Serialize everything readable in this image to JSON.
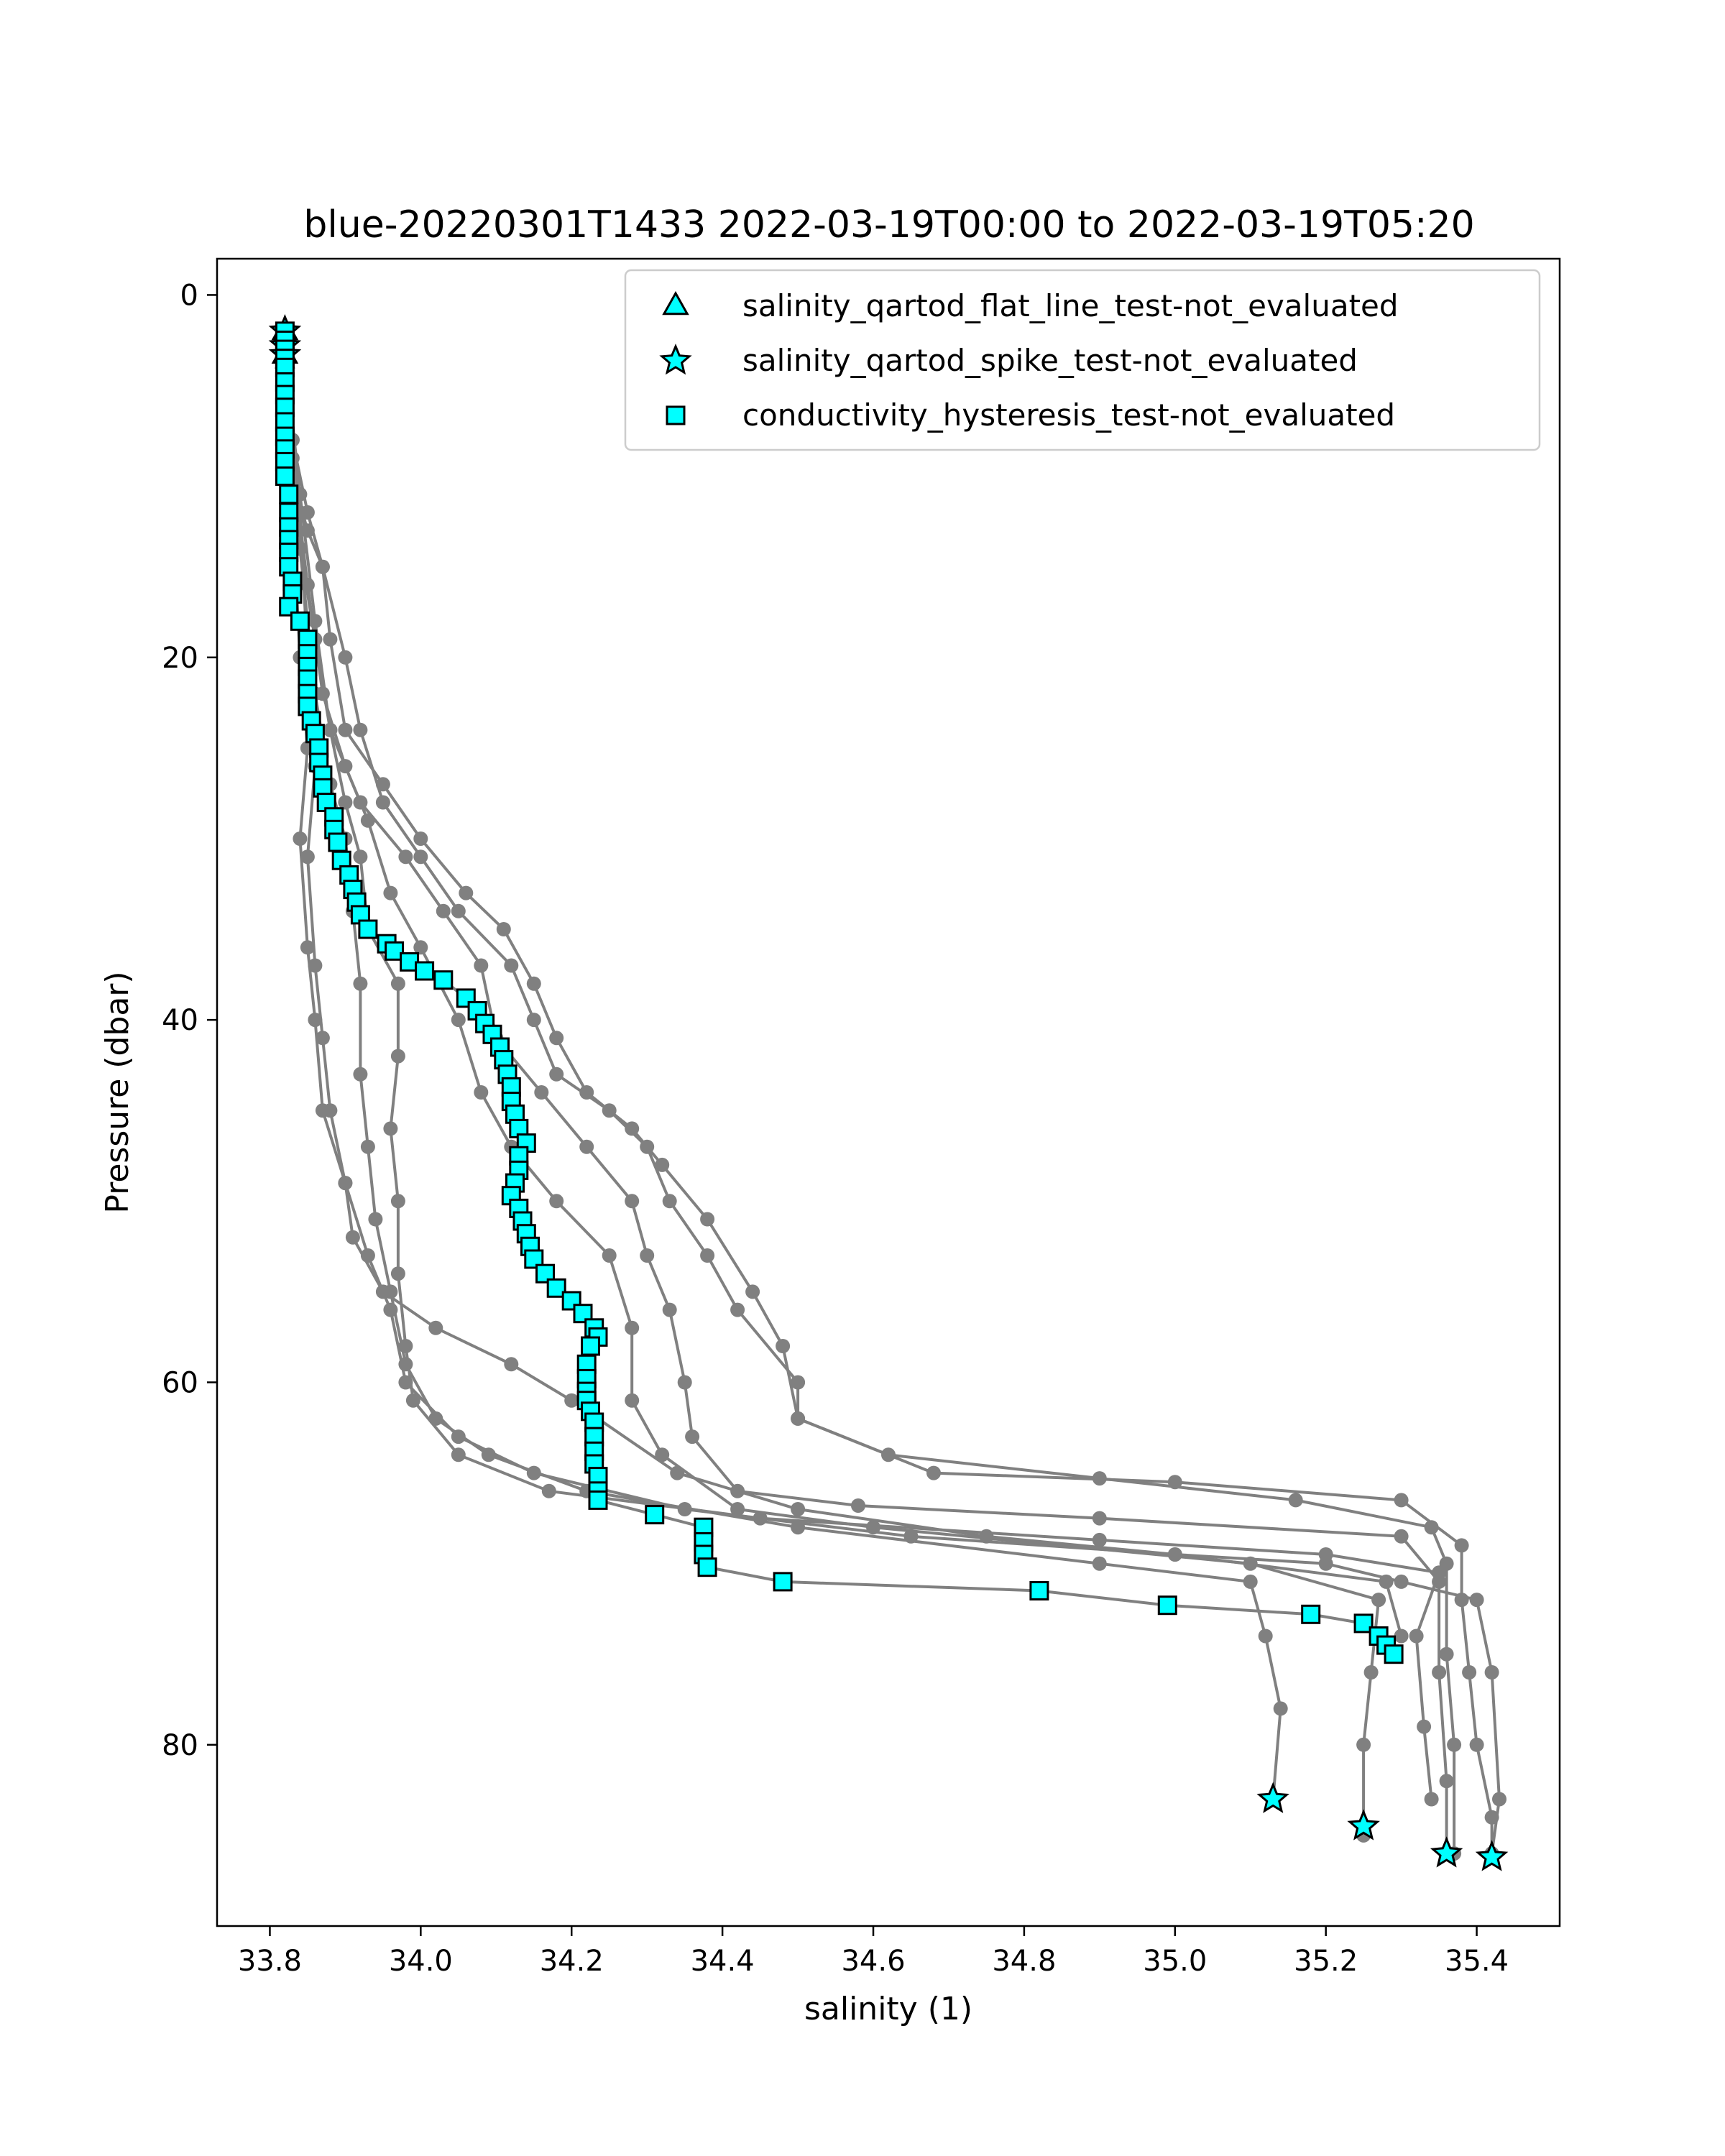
{
  "chart_data": {
    "type": "scatter",
    "title": "blue-20220301T1433 2022-03-19T00:00 to 2022-03-19T05:20",
    "xlabel": "salinity (1)",
    "ylabel": "Pressure (dbar)",
    "xlim": [
      33.73,
      35.51
    ],
    "ylim": [
      90,
      -2
    ],
    "y_inverted": true,
    "x_ticks": [
      33.8,
      34.0,
      34.2,
      34.4,
      34.6,
      34.8,
      35.0,
      35.2,
      35.4
    ],
    "x_tick_labels": [
      "33.8",
      "34.0",
      "34.2",
      "34.4",
      "34.6",
      "34.8",
      "35.0",
      "35.2",
      "35.4"
    ],
    "y_ticks": [
      0,
      20,
      40,
      60,
      80
    ],
    "y_tick_labels": [
      "0",
      "20",
      "40",
      "60",
      "80"
    ],
    "grid": false,
    "legend_position": "top-right",
    "colors": {
      "profile": "#808080",
      "marker_fill": "#00ffff",
      "marker_edge": "#000000"
    },
    "legend": [
      {
        "label": "salinity_qartod_flat_line_test-not_evaluated",
        "marker": "triangle"
      },
      {
        "label": "salinity_qartod_spike_test-not_evaluated",
        "marker": "star"
      },
      {
        "label": "conductivity_hysteresis_test-not_evaluated",
        "marker": "square"
      }
    ],
    "background_profiles": [
      [
        [
          33.82,
          2
        ],
        [
          33.82,
          6
        ],
        [
          33.83,
          10
        ],
        [
          33.85,
          13
        ],
        [
          33.87,
          15
        ],
        [
          33.9,
          20
        ],
        [
          33.92,
          24
        ],
        [
          33.95,
          28
        ],
        [
          34.0,
          31
        ],
        [
          34.05,
          34
        ],
        [
          34.12,
          37
        ],
        [
          34.15,
          40
        ],
        [
          34.18,
          43
        ],
        [
          34.25,
          45
        ],
        [
          34.3,
          47
        ],
        [
          34.33,
          50
        ],
        [
          34.38,
          53
        ],
        [
          34.42,
          56
        ],
        [
          34.5,
          60
        ],
        [
          34.5,
          62
        ],
        [
          34.68,
          65
        ],
        [
          35.0,
          65.5
        ],
        [
          35.3,
          66.5
        ],
        [
          35.38,
          69
        ],
        [
          35.38,
          72
        ],
        [
          35.39,
          76
        ],
        [
          35.4,
          80
        ],
        [
          35.42,
          84
        ],
        [
          35.42,
          86
        ]
      ],
      [
        [
          33.82,
          2
        ],
        [
          33.83,
          8
        ],
        [
          33.85,
          12
        ],
        [
          33.87,
          15
        ],
        [
          33.88,
          19
        ],
        [
          33.9,
          24
        ],
        [
          33.95,
          27
        ],
        [
          34.0,
          30
        ],
        [
          34.06,
          33
        ],
        [
          34.11,
          35
        ],
        [
          34.15,
          38
        ],
        [
          34.18,
          41
        ],
        [
          34.22,
          44
        ],
        [
          34.28,
          46
        ],
        [
          34.32,
          48
        ],
        [
          34.38,
          51
        ],
        [
          34.44,
          55
        ],
        [
          34.48,
          58
        ],
        [
          34.5,
          62
        ],
        [
          34.62,
          64
        ],
        [
          34.9,
          65.3
        ],
        [
          35.16,
          66.5
        ],
        [
          35.34,
          68
        ],
        [
          35.36,
          70
        ],
        [
          35.36,
          75
        ],
        [
          35.37,
          80
        ],
        [
          35.37,
          86
        ]
      ],
      [
        [
          33.82,
          2
        ],
        [
          33.83,
          8
        ],
        [
          33.84,
          14
        ],
        [
          33.86,
          19
        ],
        [
          33.88,
          24
        ],
        [
          33.92,
          28
        ],
        [
          33.98,
          31
        ],
        [
          34.03,
          34
        ],
        [
          34.08,
          37
        ],
        [
          34.1,
          41
        ],
        [
          34.16,
          44
        ],
        [
          34.22,
          47
        ],
        [
          34.28,
          50
        ],
        [
          34.3,
          53
        ],
        [
          34.33,
          56
        ],
        [
          34.35,
          60
        ],
        [
          34.36,
          63
        ],
        [
          34.42,
          66
        ],
        [
          34.58,
          66.8
        ],
        [
          34.9,
          67.5
        ],
        [
          35.3,
          68.5
        ],
        [
          35.35,
          71
        ],
        [
          35.35,
          76
        ],
        [
          35.36,
          82
        ],
        [
          35.36,
          86
        ]
      ],
      [
        [
          33.82,
          3
        ],
        [
          33.83,
          9
        ],
        [
          33.85,
          16
        ],
        [
          33.87,
          22
        ],
        [
          33.9,
          26
        ],
        [
          33.93,
          29
        ],
        [
          33.96,
          33
        ],
        [
          34.0,
          36
        ],
        [
          34.05,
          40
        ],
        [
          34.08,
          44
        ],
        [
          34.12,
          47
        ],
        [
          34.18,
          50
        ],
        [
          34.25,
          53
        ],
        [
          34.28,
          57
        ],
        [
          34.28,
          61
        ],
        [
          34.32,
          64
        ],
        [
          34.42,
          67
        ],
        [
          34.6,
          68
        ],
        [
          35.1,
          70
        ],
        [
          35.27,
          72
        ],
        [
          35.26,
          76
        ],
        [
          35.25,
          80
        ],
        [
          35.25,
          85
        ]
      ],
      [
        [
          33.82,
          3
        ],
        [
          33.84,
          11
        ],
        [
          33.86,
          18
        ],
        [
          33.88,
          24
        ],
        [
          33.9,
          28
        ],
        [
          33.92,
          31
        ],
        [
          33.93,
          35
        ],
        [
          33.97,
          38
        ],
        [
          33.97,
          42
        ],
        [
          33.96,
          46
        ],
        [
          33.97,
          50
        ],
        [
          33.97,
          54
        ],
        [
          33.98,
          58
        ],
        [
          33.99,
          61
        ],
        [
          34.05,
          64
        ],
        [
          34.17,
          66
        ],
        [
          34.45,
          67.5
        ],
        [
          34.9,
          68.7
        ],
        [
          35.2,
          69.5
        ],
        [
          35.35,
          70.5
        ],
        [
          35.32,
          74
        ],
        [
          35.33,
          79
        ],
        [
          35.34,
          83
        ]
      ],
      [
        [
          33.82,
          3
        ],
        [
          33.84,
          12
        ],
        [
          33.85,
          20
        ],
        [
          33.86,
          26
        ],
        [
          33.85,
          31
        ],
        [
          33.86,
          37
        ],
        [
          33.87,
          41
        ],
        [
          33.88,
          45
        ],
        [
          33.9,
          49
        ],
        [
          33.91,
          52
        ],
        [
          33.95,
          55
        ],
        [
          34.02,
          57
        ],
        [
          34.12,
          59
        ],
        [
          34.2,
          61
        ],
        [
          34.34,
          65
        ],
        [
          34.5,
          67
        ],
        [
          34.75,
          68.5
        ],
        [
          35.0,
          69.5
        ],
        [
          35.28,
          71
        ],
        [
          35.3,
          74
        ]
      ],
      [
        [
          33.82,
          3
        ],
        [
          33.84,
          14
        ],
        [
          33.86,
          22
        ],
        [
          33.88,
          27
        ],
        [
          33.9,
          30
        ],
        [
          33.91,
          34
        ],
        [
          33.92,
          38
        ],
        [
          33.92,
          43
        ],
        [
          33.93,
          47
        ],
        [
          33.94,
          51
        ],
        [
          33.96,
          55
        ],
        [
          33.98,
          59
        ],
        [
          34.02,
          62
        ],
        [
          34.09,
          64
        ],
        [
          34.22,
          66
        ],
        [
          34.5,
          68
        ],
        [
          34.9,
          70
        ],
        [
          35.1,
          71
        ],
        [
          35.12,
          74
        ],
        [
          35.14,
          78
        ],
        [
          35.13,
          83
        ]
      ],
      [
        [
          33.82,
          3
        ],
        [
          33.83,
          12
        ],
        [
          33.84,
          20
        ],
        [
          33.85,
          25
        ],
        [
          33.84,
          30
        ],
        [
          33.85,
          36
        ],
        [
          33.86,
          40
        ],
        [
          33.87,
          45
        ],
        [
          33.9,
          49
        ],
        [
          33.93,
          53
        ],
        [
          33.96,
          56
        ],
        [
          33.98,
          60
        ],
        [
          34.05,
          63
        ],
        [
          34.15,
          65
        ],
        [
          34.35,
          67
        ],
        [
          34.65,
          68.5
        ],
        [
          35.0,
          69.5
        ],
        [
          35.2,
          70
        ],
        [
          35.3,
          71
        ],
        [
          35.4,
          72
        ],
        [
          35.42,
          76
        ],
        [
          35.43,
          83
        ],
        [
          35.42,
          86
        ]
      ]
    ],
    "square_profile": [
      [
        33.82,
        2
      ],
      [
        33.82,
        2.5
      ],
      [
        33.82,
        3
      ],
      [
        33.82,
        3.5
      ],
      [
        33.82,
        4
      ],
      [
        33.82,
        4.8
      ],
      [
        33.82,
        5.5
      ],
      [
        33.82,
        6.2
      ],
      [
        33.82,
        7
      ],
      [
        33.82,
        7.8
      ],
      [
        33.82,
        8.5
      ],
      [
        33.82,
        9.2
      ],
      [
        33.82,
        10
      ],
      [
        33.825,
        11
      ],
      [
        33.825,
        12
      ],
      [
        33.825,
        12.8
      ],
      [
        33.825,
        13.5
      ],
      [
        33.825,
        14.2
      ],
      [
        33.825,
        15
      ],
      [
        33.83,
        15.8
      ],
      [
        33.83,
        16.5
      ],
      [
        33.825,
        17.2
      ],
      [
        33.84,
        18
      ],
      [
        33.85,
        19
      ],
      [
        33.85,
        19.8
      ],
      [
        33.85,
        20.5
      ],
      [
        33.85,
        21.2
      ],
      [
        33.85,
        22
      ],
      [
        33.85,
        22.7
      ],
      [
        33.855,
        23.5
      ],
      [
        33.86,
        24.2
      ],
      [
        33.865,
        25
      ],
      [
        33.865,
        25.8
      ],
      [
        33.87,
        26.5
      ],
      [
        33.87,
        27.2
      ],
      [
        33.875,
        28
      ],
      [
        33.885,
        28.8
      ],
      [
        33.885,
        29.5
      ],
      [
        33.89,
        30.2
      ],
      [
        33.895,
        31.2
      ],
      [
        33.905,
        32
      ],
      [
        33.91,
        32.8
      ],
      [
        33.915,
        33.5
      ],
      [
        33.92,
        34.2
      ],
      [
        33.93,
        35
      ],
      [
        33.955,
        35.8
      ],
      [
        33.965,
        36.2
      ],
      [
        33.985,
        36.8
      ],
      [
        34.005,
        37.3
      ],
      [
        34.03,
        37.8
      ],
      [
        34.06,
        38.8
      ],
      [
        34.075,
        39.5
      ],
      [
        34.085,
        40.2
      ],
      [
        34.095,
        40.8
      ],
      [
        34.105,
        41.5
      ],
      [
        34.11,
        42.2
      ],
      [
        34.115,
        43
      ],
      [
        34.12,
        43.7
      ],
      [
        34.12,
        44.5
      ],
      [
        34.125,
        45.2
      ],
      [
        34.13,
        46
      ],
      [
        34.14,
        46.8
      ],
      [
        34.13,
        47.5
      ],
      [
        34.13,
        48.3
      ],
      [
        34.125,
        49
      ],
      [
        34.12,
        49.7
      ],
      [
        34.13,
        50.4
      ],
      [
        34.135,
        51.1
      ],
      [
        34.14,
        51.8
      ],
      [
        34.145,
        52.5
      ],
      [
        34.15,
        53.2
      ],
      [
        34.165,
        54
      ],
      [
        34.18,
        54.8
      ],
      [
        34.2,
        55.5
      ],
      [
        34.215,
        56.2
      ],
      [
        34.23,
        57
      ],
      [
        34.235,
        57.5
      ],
      [
        34.225,
        58
      ],
      [
        34.22,
        59
      ],
      [
        34.22,
        59.8
      ],
      [
        34.22,
        60.5
      ],
      [
        34.22,
        61
      ],
      [
        34.225,
        61.6
      ],
      [
        34.23,
        62.2
      ],
      [
        34.23,
        63
      ],
      [
        34.23,
        63.8
      ],
      [
        34.23,
        64.5
      ],
      [
        34.235,
        65.2
      ],
      [
        34.235,
        66
      ],
      [
        34.235,
        66.5
      ],
      [
        34.31,
        67.3
      ],
      [
        34.375,
        68
      ],
      [
        34.375,
        68.8
      ],
      [
        34.375,
        69.5
      ],
      [
        34.38,
        70.2
      ],
      [
        34.48,
        71
      ],
      [
        34.82,
        71.5
      ],
      [
        34.99,
        72.3
      ],
      [
        35.18,
        72.8
      ],
      [
        35.25,
        73.3
      ],
      [
        35.27,
        74
      ],
      [
        35.28,
        74.5
      ],
      [
        35.29,
        75
      ]
    ],
    "star_points": [
      [
        33.82,
        2
      ],
      [
        33.82,
        2.8
      ],
      [
        33.82,
        3.3
      ],
      [
        35.13,
        83
      ],
      [
        35.25,
        84.5
      ],
      [
        35.36,
        86
      ],
      [
        35.42,
        86.2
      ]
    ],
    "triangle_points": [
      [
        33.82,
        2
      ],
      [
        33.82,
        3.3
      ]
    ]
  }
}
